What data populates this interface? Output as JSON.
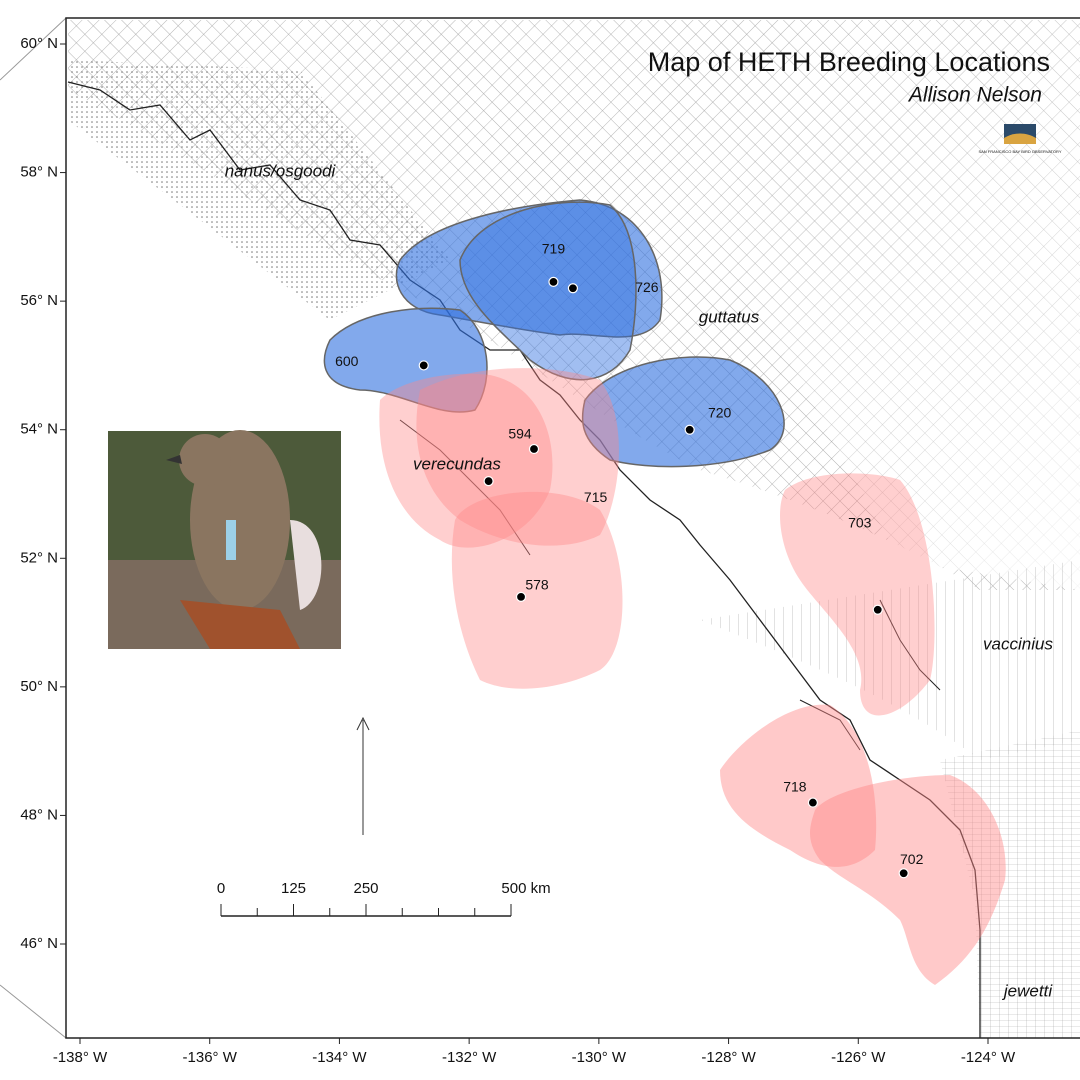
{
  "title": "Map of HETH Breeding Locations",
  "author": "Allison Nelson",
  "logo_text": "SAN FRANCISCO BAY BIRD OBSERVATORY",
  "lat_ticks": [
    {
      "value": 60,
      "label": "60° N"
    },
    {
      "value": 58,
      "label": "58° N"
    },
    {
      "value": 56,
      "label": "56° N"
    },
    {
      "value": 54,
      "label": "54° N"
    },
    {
      "value": 52,
      "label": "52° N"
    },
    {
      "value": 50,
      "label": "50° N"
    },
    {
      "value": 48,
      "label": "48° N"
    },
    {
      "value": 46,
      "label": "46° N"
    }
  ],
  "lon_ticks": [
    {
      "value": -138,
      "label": "-138° W"
    },
    {
      "value": -136,
      "label": "-136° W"
    },
    {
      "value": -134,
      "label": "-134° W"
    },
    {
      "value": -132,
      "label": "-132° W"
    },
    {
      "value": -130,
      "label": "-130° W"
    },
    {
      "value": -128,
      "label": "-128° W"
    },
    {
      "value": -126,
      "label": "-126° W"
    },
    {
      "value": -124,
      "label": "-124° W"
    }
  ],
  "subspecies": [
    "nanus/osgoodi",
    "guttatus",
    "verecundas",
    "vaccinius",
    "jewetti"
  ],
  "territories": [
    {
      "label": "719",
      "lon": -130.7,
      "lat": 56.3
    },
    {
      "label": "726",
      "lon": -130.4,
      "lat": 56.2
    },
    {
      "label": "600",
      "lon": -132.7,
      "lat": 55.0
    },
    {
      "label": "720",
      "lon": -128.6,
      "lat": 54.0
    },
    {
      "label": "594",
      "lon": -131.0,
      "lat": 53.7
    },
    {
      "label": "715",
      "lon": -131.7,
      "lat": 53.2
    },
    {
      "label": "578",
      "lon": -131.2,
      "lat": 51.4
    },
    {
      "label": "703",
      "lon": -125.7,
      "lat": 51.2
    },
    {
      "label": "718",
      "lon": -126.7,
      "lat": 48.2
    },
    {
      "label": "702",
      "lon": -125.3,
      "lat": 47.1
    }
  ],
  "scale_bar": [
    0,
    125,
    250,
    {
      "value": 500,
      "label": "500 km"
    }
  ]
}
